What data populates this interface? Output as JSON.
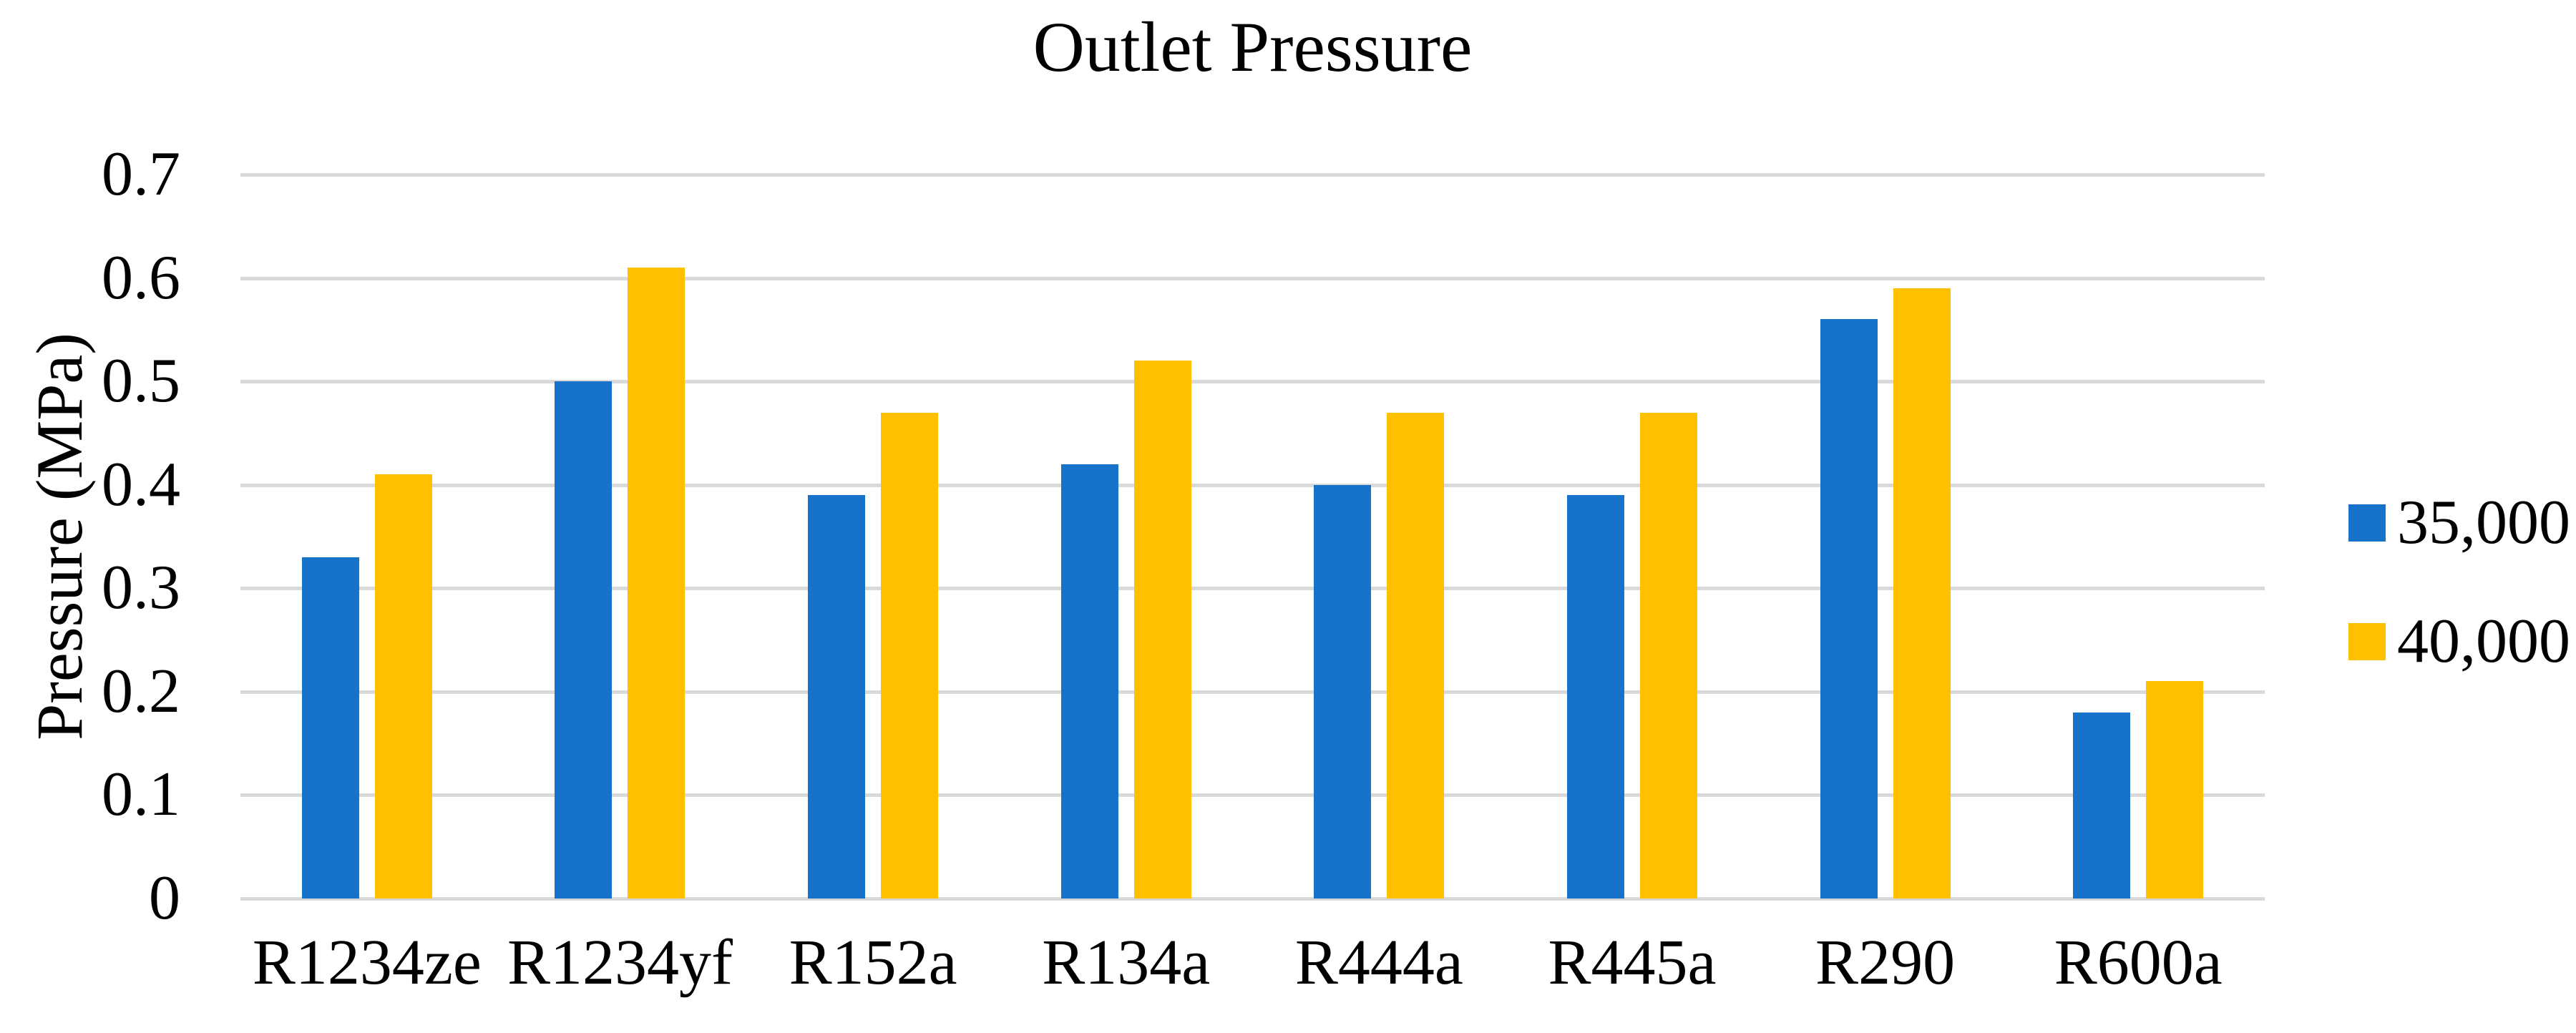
{
  "chart": {
    "title": "Outlet Pressure",
    "y_axis_title": "Pressure (MPa)"
  },
  "chart_data": {
    "type": "bar",
    "title": "Outlet Pressure",
    "categories": [
      "R1234ze",
      "R1234yf",
      "R152a",
      "R134a",
      "R444a",
      "R445a",
      "R290",
      "R600a"
    ],
    "series": [
      {
        "name": "35,000",
        "color": "#1773C9",
        "values": [
          0.33,
          0.5,
          0.39,
          0.42,
          0.4,
          0.39,
          0.56,
          0.18
        ]
      },
      {
        "name": "40,000",
        "color": "#FFC000",
        "values": [
          0.41,
          0.61,
          0.47,
          0.52,
          0.47,
          0.47,
          0.59,
          0.21
        ]
      }
    ],
    "xlabel": "",
    "ylabel": "Pressure (MPa)",
    "ylim": [
      0,
      0.7
    ],
    "ytick_interval": 0.1,
    "ytick_labels": [
      "0",
      "0.1",
      "0.2",
      "0.3",
      "0.4",
      "0.5",
      "0.6",
      "0.7"
    ],
    "grid": true,
    "legend_position": "right",
    "colors": {
      "grid": "#D9D9D9",
      "text": "#000000",
      "background": "#FFFFFF"
    }
  }
}
